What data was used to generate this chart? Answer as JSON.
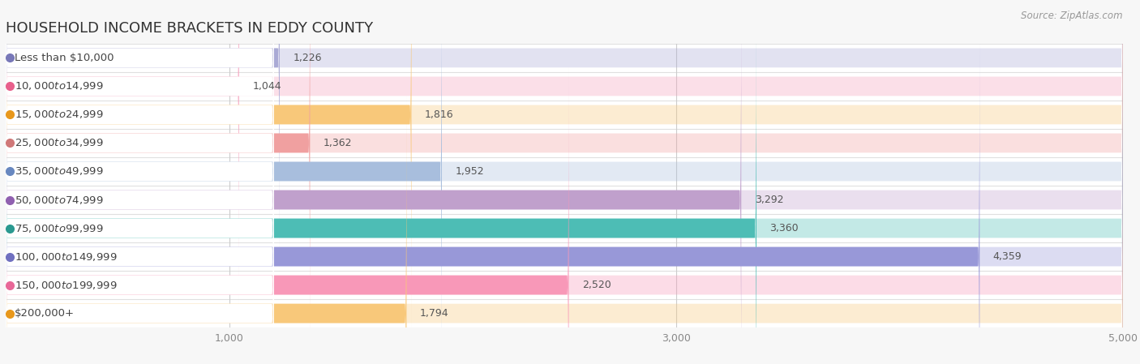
{
  "title": "HOUSEHOLD INCOME BRACKETS IN EDDY COUNTY",
  "source": "Source: ZipAtlas.com",
  "categories": [
    "Less than $10,000",
    "$10,000 to $14,999",
    "$15,000 to $24,999",
    "$25,000 to $34,999",
    "$35,000 to $49,999",
    "$50,000 to $74,999",
    "$75,000 to $99,999",
    "$100,000 to $149,999",
    "$150,000 to $199,999",
    "$200,000+"
  ],
  "values": [
    1226,
    1044,
    1816,
    1362,
    1952,
    3292,
    3360,
    4359,
    2520,
    1794
  ],
  "bar_colors": [
    "#aaaad5",
    "#f5a0bc",
    "#f8c87a",
    "#f0a0a0",
    "#a8bedd",
    "#c0a0cc",
    "#4dbdb5",
    "#9898d8",
    "#f898b8",
    "#f8c87a"
  ],
  "dot_colors": [
    "#7878b8",
    "#e8608c",
    "#e8981c",
    "#d07878",
    "#6888c0",
    "#9060b0",
    "#2a9990",
    "#7070c0",
    "#e86898",
    "#e8981c"
  ],
  "xlim": [
    0,
    5000
  ],
  "xticks": [
    1000,
    3000,
    5000
  ],
  "background_color": "#f7f7f7",
  "row_bg_color": "#ffffff",
  "title_fontsize": 13,
  "label_fontsize": 9.5,
  "value_fontsize": 9,
  "source_fontsize": 8.5
}
